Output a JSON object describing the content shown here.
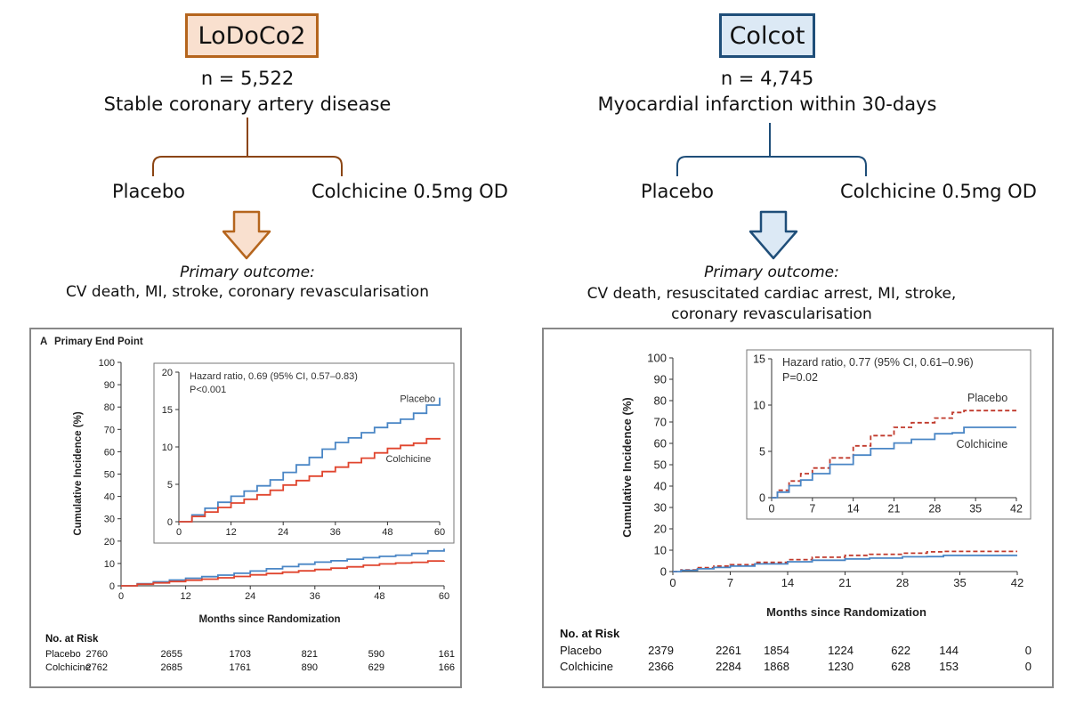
{
  "left": {
    "trial_name": "LoDoCo2",
    "n": "n = 5,522",
    "population": "Stable coronary artery disease",
    "arm_placebo": "Placebo",
    "arm_colchicine": "Colchicine 0.5mg OD",
    "primary_outcome_title": "Primary outcome:",
    "primary_outcome_text": "CV death, MI, stroke, coronary revascularisation",
    "accent_color": "#b5651d",
    "box_fill": "#f9e0cf"
  },
  "right": {
    "trial_name": "Colcot",
    "n": "n = 4,745",
    "population": "Myocardial infarction within 30-days",
    "arm_placebo": "Placebo",
    "arm_colchicine": "Colchicine 0.5mg OD",
    "primary_outcome_title": "Primary outcome:",
    "primary_outcome_line1": "CV death, resuscitated cardiac arrest, MI, stroke,",
    "primary_outcome_line2": "coronary revascularisation",
    "accent_color": "#1f4e79",
    "box_fill": "#dce9f5"
  },
  "chart_data": [
    {
      "type": "line",
      "panel_label": "A",
      "title": "Primary End Point",
      "xlabel": "Months since Randomization",
      "ylabel": "Cumulative Incidence (%)",
      "xlim": [
        0,
        60
      ],
      "ylim": [
        0,
        100
      ],
      "xticks": [
        0,
        12,
        24,
        36,
        48,
        60
      ],
      "yticks": [
        0,
        10,
        20,
        30,
        40,
        50,
        60,
        70,
        80,
        90,
        100
      ],
      "series": [
        {
          "name": "Placebo",
          "color": "#4a86c5",
          "style": "solid",
          "x": [
            0,
            3,
            6,
            9,
            12,
            15,
            18,
            21,
            24,
            27,
            30,
            33,
            36,
            39,
            42,
            45,
            48,
            51,
            54,
            57,
            60
          ],
          "y": [
            0,
            0.9,
            1.8,
            2.6,
            3.4,
            4.1,
            4.8,
            5.6,
            6.6,
            7.6,
            8.6,
            9.7,
            10.6,
            11.2,
            11.9,
            12.6,
            13.2,
            13.7,
            14.5,
            15.6,
            16.6
          ]
        },
        {
          "name": "Colchicine",
          "color": "#e0452e",
          "style": "solid",
          "x": [
            0,
            3,
            6,
            9,
            12,
            15,
            18,
            21,
            24,
            27,
            30,
            33,
            36,
            39,
            42,
            45,
            48,
            51,
            54,
            57,
            60
          ],
          "y": [
            0,
            0.7,
            1.3,
            1.9,
            2.5,
            3.0,
            3.6,
            4.2,
            4.9,
            5.5,
            6.1,
            6.7,
            7.3,
            7.9,
            8.5,
            9.2,
            9.8,
            10.2,
            10.5,
            11.1,
            11.2
          ]
        }
      ],
      "inset": {
        "xlim": [
          0,
          60
        ],
        "ylim": [
          0,
          20
        ],
        "xticks": [
          0,
          12,
          24,
          36,
          48,
          60
        ],
        "yticks": [
          0,
          5,
          10,
          15,
          20
        ],
        "annotation_line1": "Hazard ratio, 0.69 (95% CI, 0.57–0.83)",
        "annotation_line2": "P<0.001"
      },
      "risk_table": {
        "title": "No. at Risk",
        "rows": [
          {
            "label": "Placebo",
            "values": [
              "2760",
              "2655",
              "1703",
              "821",
              "590",
              "161"
            ]
          },
          {
            "label": "Colchicine",
            "values": [
              "2762",
              "2685",
              "1761",
              "890",
              "629",
              "166"
            ]
          }
        ]
      }
    },
    {
      "type": "line",
      "xlabel": "Months since Randomization",
      "ylabel": "Cumulative Incidence (%)",
      "xlim": [
        0,
        42
      ],
      "ylim": [
        0,
        100
      ],
      "xticks": [
        0,
        7,
        14,
        21,
        28,
        35,
        42
      ],
      "yticks": [
        0,
        10,
        20,
        30,
        40,
        50,
        60,
        70,
        80,
        90,
        100
      ],
      "series": [
        {
          "name": "Placebo",
          "color": "#c0392b",
          "style": "dashed",
          "x": [
            0,
            1,
            3,
            5,
            7,
            10,
            14,
            17,
            21,
            24,
            28,
            31,
            33,
            35,
            42
          ],
          "y": [
            0,
            0.8,
            1.8,
            2.6,
            3.2,
            4.3,
            5.6,
            6.7,
            7.6,
            8.1,
            8.6,
            9.2,
            9.4,
            9.4,
            9.4
          ]
        },
        {
          "name": "Colchicine",
          "color": "#4a86c5",
          "style": "solid",
          "x": [
            0,
            1,
            3,
            5,
            7,
            10,
            14,
            17,
            21,
            24,
            28,
            31,
            33,
            35,
            42
          ],
          "y": [
            0,
            0.6,
            1.3,
            1.9,
            2.6,
            3.6,
            4.6,
            5.3,
            5.9,
            6.3,
            6.9,
            7.0,
            7.6,
            7.6,
            7.6
          ]
        }
      ],
      "inset": {
        "xlim": [
          0,
          42
        ],
        "ylim": [
          0,
          15
        ],
        "xticks": [
          0,
          7,
          14,
          21,
          28,
          35,
          42
        ],
        "yticks": [
          0,
          5,
          10,
          15
        ],
        "annotation_line1": "Hazard ratio, 0.77 (95% CI, 0.61–0.96)",
        "annotation_line2": "P=0.02"
      },
      "risk_table": {
        "title": "No. at Risk",
        "rows": [
          {
            "label": "Placebo",
            "values": [
              "2379",
              "2261",
              "1854",
              "1224",
              "622",
              "144",
              "0"
            ]
          },
          {
            "label": "Colchicine",
            "values": [
              "2366",
              "2284",
              "1868",
              "1230",
              "628",
              "153",
              "0"
            ]
          }
        ]
      }
    }
  ]
}
